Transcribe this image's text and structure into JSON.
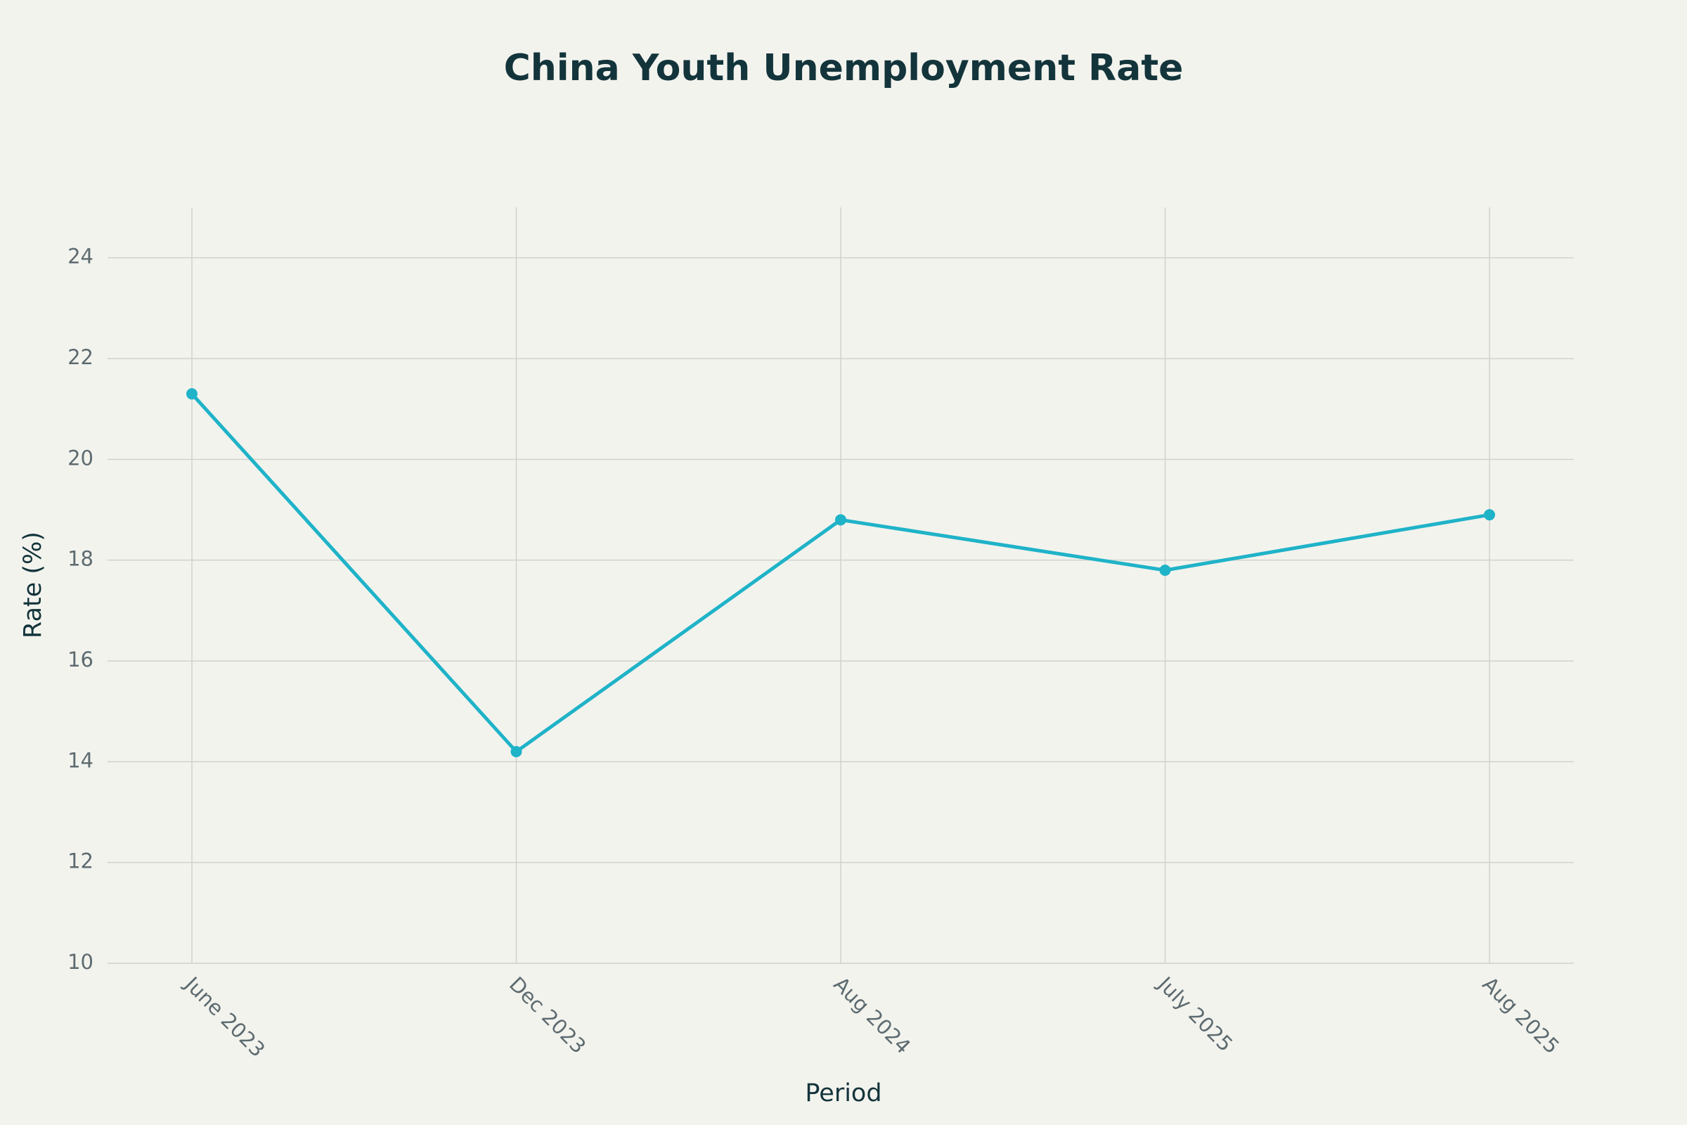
{
  "chart_data": {
    "type": "line",
    "title": "China Youth Unemployment Rate",
    "x_label": "Period",
    "y_label": "Rate (%)",
    "categories": [
      "June 2023",
      "Dec 2023",
      "Aug 2024",
      "July 2025",
      "Aug 2025"
    ],
    "values": [
      21.3,
      14.2,
      18.8,
      17.8,
      18.9
    ],
    "color": "#1fb3c8",
    "ylim": [
      10,
      25
    ],
    "yticks": [
      10,
      12,
      14,
      16,
      18,
      20,
      22,
      24
    ],
    "grid": true,
    "markers": true
  }
}
